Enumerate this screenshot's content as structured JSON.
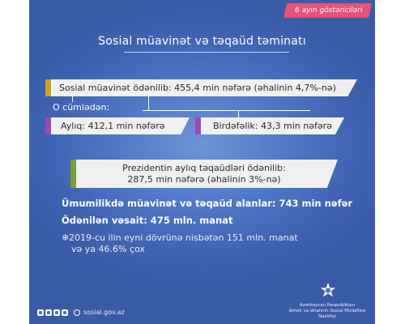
{
  "tag": "6 ayın göstəriciləri",
  "title": "Sosial müavinət və təqaüd təminatı",
  "main_bar": "Sosial müavinət ödənilib: 455,4 min nəfərə (əhalinin 4,7%-nə)",
  "subtitle": "O cümlədən:",
  "monthly": "Aylıq: 412,1 min nəfərə",
  "onetime": "Birdəfəlik: 43,3 min nəfərə",
  "pension_line1": "Prezidentin aylıq təqaüdləri ödənilib:",
  "pension_line2": "287,5 min nəfərə (əhalinin 3%-nə)",
  "total_recipients": "Ümumilikdə müavinət və təqaüd alanlar: 743 min nəfər",
  "total_paid": "Ödənilən vəsait: 475 mln. manat",
  "note_line1": "2019-cu ilin eyni dövrünə nisbətən 151 mln. manat",
  "note_line2": "və ya 46.6% çox",
  "website": "sosial.gov.az",
  "org_line1": "Azərbaycan Respublikası",
  "org_line2": "Əmək və Əhalinin Sosial Müdafiəsi Nazirliyi",
  "social_icons": [
    "facebook-icon",
    "instagram-icon",
    "youtube-icon",
    "twitter-icon"
  ],
  "colors": {
    "background": "#4d75c4",
    "tag": "#e8517a",
    "accent_gold": "#c9a227",
    "accent_purple": "#9b49b8",
    "accent_green": "#7f9b3a"
  }
}
